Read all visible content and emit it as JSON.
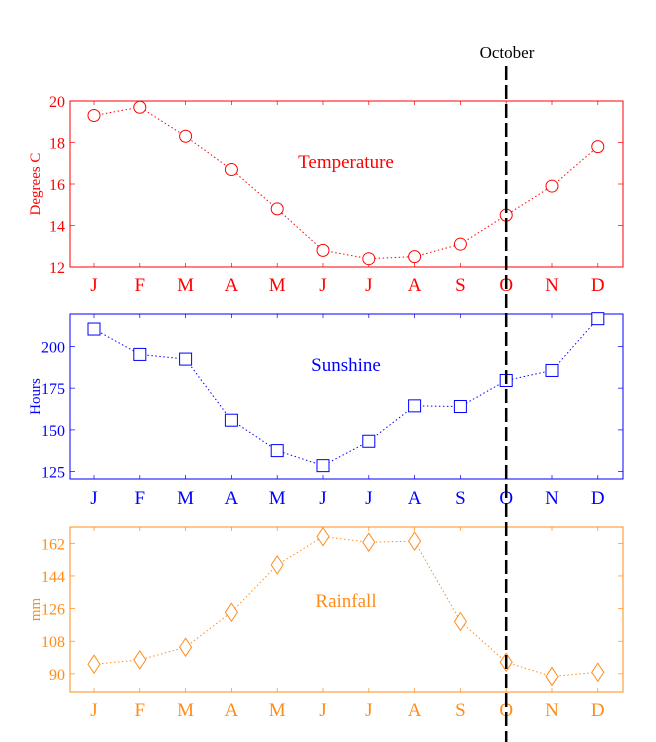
{
  "marker_label": "October",
  "marker_month": "O",
  "chart_data": [
    {
      "type": "line",
      "title": "Temperature",
      "ylabel": "Degrees C",
      "color": "#ff0000",
      "marker": "circle",
      "categories": [
        "J",
        "F",
        "M",
        "A",
        "M",
        "J",
        "J",
        "A",
        "S",
        "O",
        "N",
        "D"
      ],
      "values": [
        19.3,
        19.7,
        18.3,
        16.7,
        14.8,
        12.8,
        12.4,
        12.5,
        13.1,
        14.5,
        15.9,
        17.8
      ],
      "yticks": [
        12,
        14,
        16,
        18,
        20
      ],
      "ylim": [
        12,
        20
      ]
    },
    {
      "type": "line",
      "title": "Sunshine",
      "ylabel": "Hours",
      "color": "#0000ff",
      "marker": "square",
      "categories": [
        "J",
        "F",
        "M",
        "A",
        "M",
        "J",
        "J",
        "A",
        "S",
        "O",
        "N",
        "D"
      ],
      "values": [
        210.4,
        195.2,
        192.4,
        155.8,
        137.6,
        128.6,
        143.2,
        164.4,
        164,
        179.6,
        185.6,
        216.6
      ],
      "yticks": [
        125,
        150,
        175,
        200
      ],
      "ylim": [
        120.6,
        219.4
      ]
    },
    {
      "type": "line",
      "title": "Rainfall",
      "ylabel": "mm",
      "color": "#ff8c1a",
      "marker": "diamond",
      "categories": [
        "J",
        "F",
        "M",
        "A",
        "M",
        "J",
        "J",
        "A",
        "S",
        "O",
        "N",
        "D"
      ],
      "values": [
        95.3,
        97.7,
        104.7,
        124,
        150.1,
        165.7,
        162.6,
        163.2,
        118.9,
        96.4,
        88.5,
        90.9
      ],
      "yticks": [
        90,
        108,
        126,
        144,
        162
      ],
      "ylim": [
        80,
        171
      ]
    }
  ]
}
